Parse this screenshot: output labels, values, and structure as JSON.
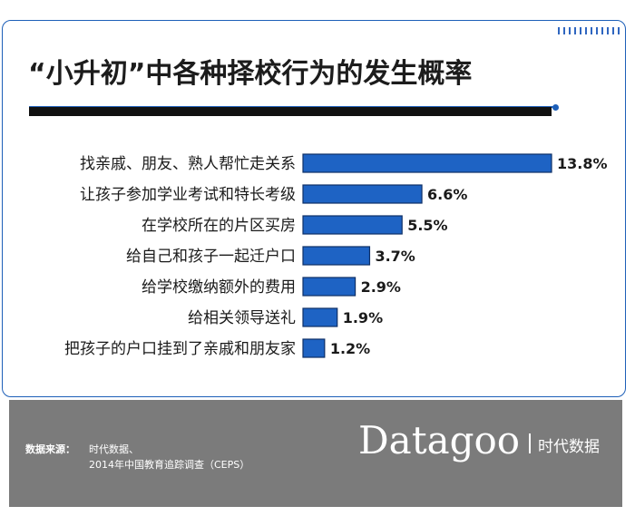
{
  "title": "“小升初”中各种择校行为的发生概率",
  "chart_data": {
    "type": "bar",
    "orientation": "horizontal",
    "title": "“小升初”中各种择校行为的发生概率",
    "categories": [
      "找亲戚、朋友、熟人帮忙走关系",
      "让孩子参加学业考试和特长考级",
      "在学校所在的片区买房",
      "给自己和孩子一起迁户口",
      "给学校缴纳额外的费用",
      "给相关领导送礼",
      "把孩子的户口挂到了亲戚和朋友家"
    ],
    "values": [
      13.8,
      6.6,
      5.5,
      3.7,
      2.9,
      1.9,
      1.2
    ],
    "value_labels": [
      "13.8%",
      "6.6%",
      "5.5%",
      "3.7%",
      "2.9%",
      "1.9%",
      "1.2%"
    ],
    "unit": "%",
    "xlim": [
      0,
      13.8
    ],
    "grid": false,
    "legend": "none",
    "colors": {
      "bar": "#1e63c4",
      "bar_outline": "#0e2f66"
    }
  },
  "footer": {
    "source_label": "数据来源：",
    "source_line1": "时代数据、",
    "source_line2": "2014年中国教育追踪调查（CEPS）",
    "logo_text": "Datagoo",
    "logo_cn": "时代数据"
  },
  "colors": {
    "accent": "#1d5fb8",
    "footer_bg": "#7b7b7b"
  }
}
